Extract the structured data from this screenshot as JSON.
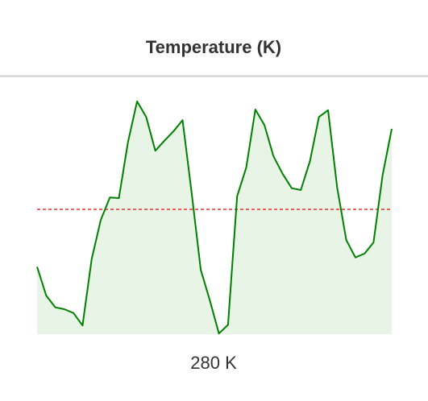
{
  "chart_data": {
    "type": "line",
    "title": "Temperature (K)",
    "values": [
      270.8,
      266.2,
      264.3,
      264.0,
      263.4,
      261.4,
      272.0,
      278.3,
      281.9,
      281.8,
      290.8,
      297.3,
      294.8,
      289.4,
      291.0,
      292.5,
      294.3,
      282.6,
      270.3,
      265.4,
      260.1,
      261.5,
      282.1,
      286.7,
      296.0,
      293.5,
      288.5,
      285.7,
      283.4,
      283.1,
      287.7,
      294.8,
      295.9,
      283.5,
      275.1,
      272.3,
      272.9,
      274.7,
      285.5,
      292.9
    ],
    "color": "#008000",
    "fill": "#e8f4e6",
    "reference": 280,
    "reference_color": "#e03030",
    "ylim": [
      260,
      300
    ],
    "value_label": "280 K"
  }
}
